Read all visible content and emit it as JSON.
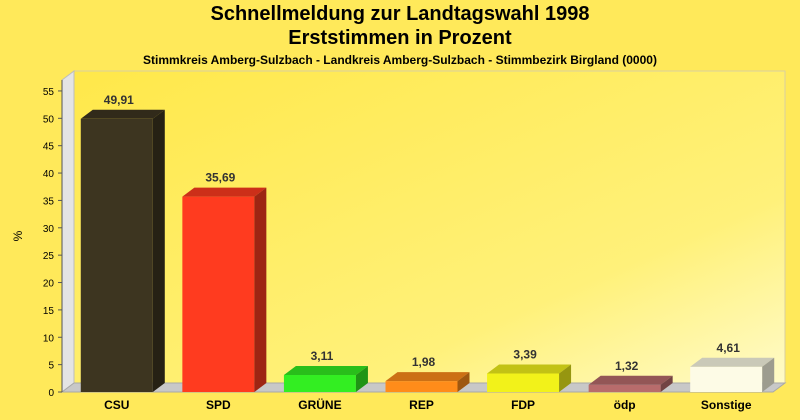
{
  "title": "Schnellmeldung zur Landtagswahl 1998",
  "title2": "Erststimmen in Prozent",
  "subtitle": "Stimmkreis Amberg-Sulzbach - Landkreis Amberg-Sulzbach - Stimmbezirk Birgland (0000)",
  "chart_data": {
    "type": "bar",
    "title": "Schnellmeldung zur Landtagswahl 1998",
    "subtitle": "Erststimmen in Prozent",
    "ylabel": "%",
    "xlabel": "",
    "ylim": [
      0,
      57
    ],
    "yticks": [
      0,
      5,
      10,
      15,
      20,
      25,
      30,
      35,
      40,
      45,
      50,
      55
    ],
    "grid": false,
    "legend": "none",
    "categories": [
      "CSU",
      "SPD",
      "GRÜNE",
      "REP",
      "FDP",
      "ödp",
      "Sonstige"
    ],
    "values": [
      49.91,
      35.69,
      3.11,
      1.98,
      3.39,
      1.32,
      4.61
    ],
    "value_labels": [
      "49,91",
      "35,69",
      "3,11",
      "1,98",
      "3,39",
      "1,32",
      "4,61"
    ],
    "colors": [
      "#3d3520",
      "#ff3b1f",
      "#33ee22",
      "#ff8c1a",
      "#f2f21a",
      "#b86c6c",
      "#fdfbe6"
    ]
  }
}
